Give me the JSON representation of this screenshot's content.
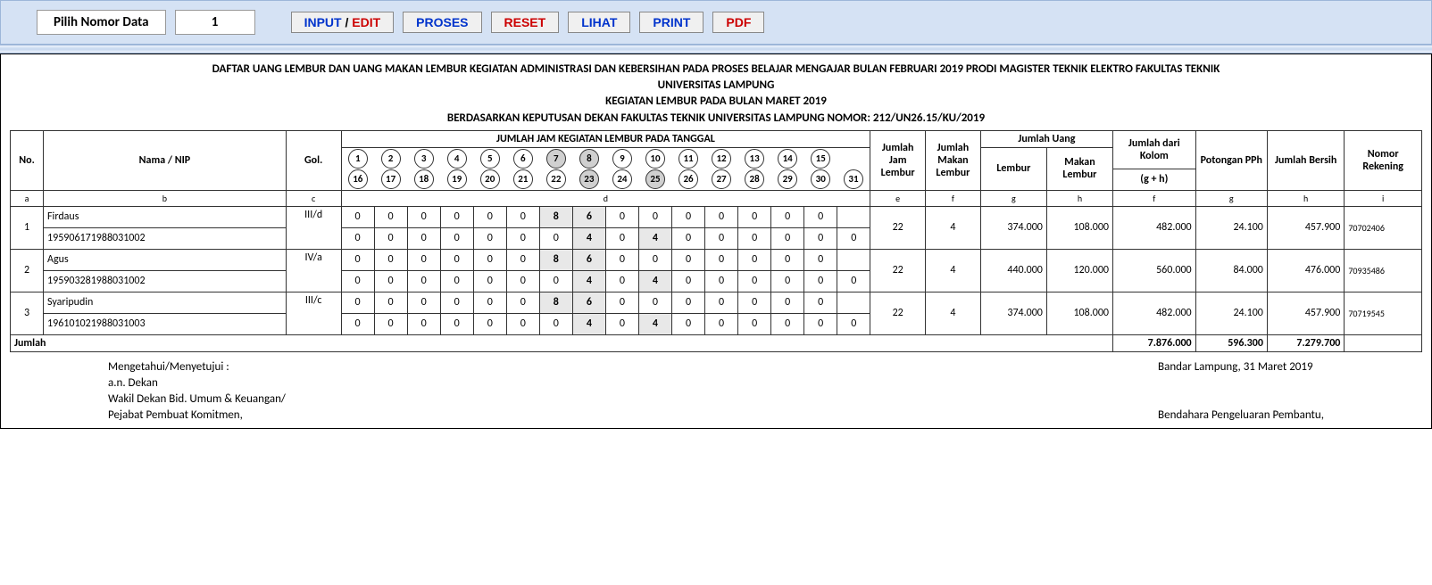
{
  "toolbar": {
    "pick_label": "Pilih Nomor Data",
    "pick_value": "1",
    "input_a": "INPUT",
    "input_sep": " / ",
    "input_b": "EDIT",
    "proses": "PROSES",
    "reset": "RESET",
    "lihat": "LIHAT",
    "print": "PRINT",
    "pdf": "PDF"
  },
  "heading": {
    "l1": "DAFTAR UANG LEMBUR DAN UANG MAKAN LEMBUR KEGIATAN ADMINISTRASI DAN KEBERSIHAN PADA PROSES BELAJAR MENGAJAR BULAN FEBRUARI 2019 PRODI MAGISTER TEKNIK ELEKTRO FAKULTAS TEKNIK",
    "l2": "UNIVERSITAS LAMPUNG",
    "l3": "KEGIATAN LEMBUR PADA BULAN MARET 2019",
    "l4": "BERDASARKAN KEPUTUSAN DEKAN FAKULTAS TEKNIK UNIVERSITAS LAMPUNG NOMOR: 212/UN26.15/KU/2019"
  },
  "cols": {
    "no": "No.",
    "nama": "Nama / NIP",
    "gol": "Gol.",
    "days_header": "JUMLAH JAM KEGIATAN LEMBUR PADA TANGGAL",
    "jml_jam": "Jumlah Jam Lembur",
    "jml_makan": "Jumlah Makan Lembur",
    "jml_uang": "Jumlah Uang",
    "lembur": "Lembur",
    "makan": "Makan Lembur",
    "kolom": "Jumlah dari Kolom",
    "gh": "(g + h)",
    "pph": "Potongan PPh",
    "bersih": "Jumlah Bersih",
    "rek": "Nomor Rekening"
  },
  "days_row1": [
    "1",
    "2",
    "3",
    "4",
    "5",
    "6",
    "7",
    "8",
    "9",
    "10",
    "11",
    "12",
    "13",
    "14",
    "15",
    ""
  ],
  "days_row2": [
    "16",
    "17",
    "18",
    "19",
    "20",
    "21",
    "22",
    "23",
    "24",
    "25",
    "26",
    "27",
    "28",
    "29",
    "30",
    "31"
  ],
  "shaded_r1": [
    6,
    7
  ],
  "shaded_r2": [
    7,
    9
  ],
  "lettercols": {
    "a": "a",
    "b": "b",
    "c": "c",
    "d": "d",
    "e": "e",
    "f": "f",
    "g": "g",
    "h": "h",
    "ff": "f",
    "gg": "g",
    "hh": "h",
    "i": "i"
  },
  "rows": [
    {
      "no": "1",
      "nama": "Firdaus",
      "nip": "195906171988031002",
      "gol": "III/d",
      "r1": [
        "0",
        "0",
        "0",
        "0",
        "0",
        "0",
        "8",
        "6",
        "0",
        "0",
        "0",
        "0",
        "0",
        "0",
        "0",
        ""
      ],
      "r2": [
        "0",
        "0",
        "0",
        "0",
        "0",
        "0",
        "0",
        "4",
        "0",
        "4",
        "0",
        "0",
        "0",
        "0",
        "0",
        "0"
      ],
      "jam": "22",
      "makan": "4",
      "u_lembur": "374.000",
      "u_makan": "108.000",
      "kolom": "482.000",
      "pph": "24.100",
      "bersih": "457.900",
      "rek": "70702406"
    },
    {
      "no": "2",
      "nama": "Agus",
      "nip": "195903281988031002",
      "gol": "IV/a",
      "r1": [
        "0",
        "0",
        "0",
        "0",
        "0",
        "0",
        "8",
        "6",
        "0",
        "0",
        "0",
        "0",
        "0",
        "0",
        "0",
        ""
      ],
      "r2": [
        "0",
        "0",
        "0",
        "0",
        "0",
        "0",
        "0",
        "4",
        "0",
        "4",
        "0",
        "0",
        "0",
        "0",
        "0",
        "0"
      ],
      "jam": "22",
      "makan": "4",
      "u_lembur": "440.000",
      "u_makan": "120.000",
      "kolom": "560.000",
      "pph": "84.000",
      "bersih": "476.000",
      "rek": "70935486"
    },
    {
      "no": "3",
      "nama": "Syaripudin",
      "nip": "196101021988031003",
      "gol": "III/c",
      "r1": [
        "0",
        "0",
        "0",
        "0",
        "0",
        "0",
        "8",
        "6",
        "0",
        "0",
        "0",
        "0",
        "0",
        "0",
        "0",
        ""
      ],
      "r2": [
        "0",
        "0",
        "0",
        "0",
        "0",
        "0",
        "0",
        "4",
        "0",
        "4",
        "0",
        "0",
        "0",
        "0",
        "0",
        "0"
      ],
      "jam": "22",
      "makan": "4",
      "u_lembur": "374.000",
      "u_makan": "108.000",
      "kolom": "482.000",
      "pph": "24.100",
      "bersih": "457.900",
      "rek": "70719545"
    }
  ],
  "totals": {
    "label": "Jumlah",
    "kolom": "7.876.000",
    "pph": "596.300",
    "bersih": "7.279.700"
  },
  "sig": {
    "left1": "Mengetahui/Menyetujui :",
    "left2": "a.n. Dekan",
    "left3": "Wakil Dekan Bid. Umum & Keuangan/",
    "left4": "Pejabat Pembuat Komitmen,",
    "right1": "Bandar Lampung, 31 Maret 2019",
    "right2": "Bendahara Pengeluaran Pembantu,"
  },
  "style": {
    "bold_indices_r1": [
      6,
      7
    ],
    "bold_indices_r2": [
      7,
      9
    ]
  }
}
